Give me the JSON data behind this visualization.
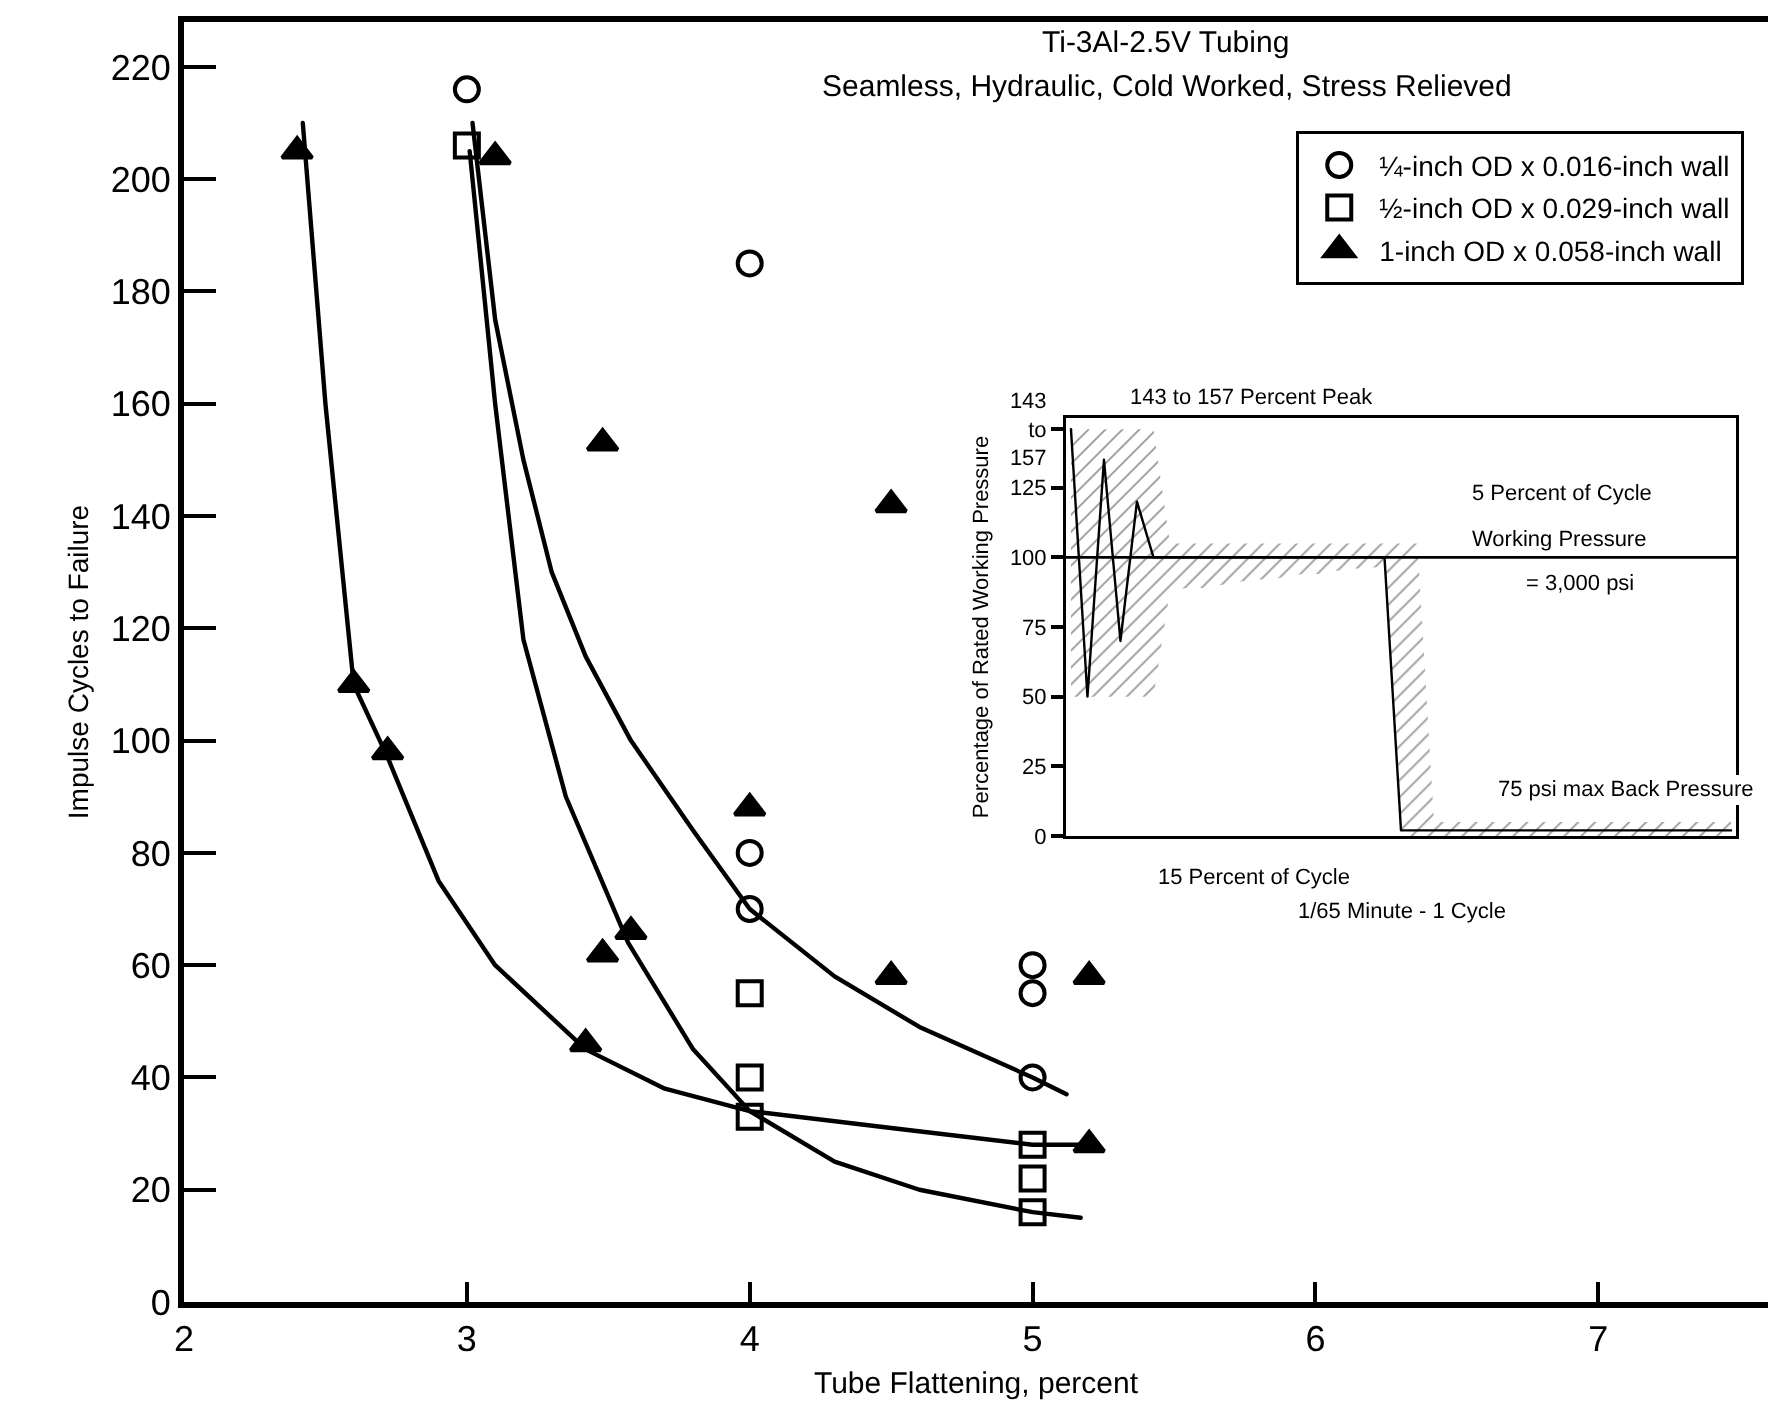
{
  "chart_data": [
    {
      "type": "scatter",
      "title": "Ti-3Al-2.5V Tubing",
      "subtitle": "Seamless, Hydraulic, Cold Worked, Stress Relieved",
      "xlabel": "Tube Flattening, percent",
      "ylabel": "Impulse Cycles to Failure",
      "xlim": [
        2,
        7.6
      ],
      "xticks": [
        2,
        3,
        4,
        5,
        6,
        7
      ],
      "ylim": [
        0,
        228
      ],
      "yticks": [
        0,
        20,
        40,
        60,
        80,
        100,
        120,
        140,
        160,
        180,
        200,
        220
      ],
      "grid": false,
      "legend": "top right",
      "series": [
        {
          "name": "¼-inch OD x 0.016-inch wall",
          "color": "#000000",
          "marker": "circle",
          "x": [
            3,
            4,
            4,
            4,
            5,
            5,
            5
          ],
          "values": [
            216,
            185,
            80,
            70,
            60,
            55,
            40
          ]
        },
        {
          "name": "½-inch OD x 0.029-inch wall",
          "color": "#000000",
          "marker": "square",
          "x": [
            3,
            4,
            4,
            4,
            5,
            5,
            5
          ],
          "values": [
            206,
            55,
            40,
            33,
            28,
            22,
            16
          ]
        },
        {
          "name": "1-inch OD x 0.058-inch wall",
          "color": "#000000",
          "marker": "triangle",
          "x": [
            2.4,
            2.6,
            2.72,
            3.1,
            3.42,
            3.48,
            3.48,
            3.58,
            4,
            4.5,
            4.5,
            5.2,
            5.2
          ],
          "values": [
            205,
            110,
            98,
            204,
            46,
            153,
            62,
            66,
            88,
            142,
            58,
            58,
            28
          ]
        },
        {
          "type": "line",
          "color": "#000000",
          "marker": "none",
          "x": [
            3.02,
            3.1,
            3.2,
            3.3,
            3.42,
            3.58,
            3.8,
            4,
            4.3,
            4.6,
            5,
            5.12
          ],
          "values": [
            210,
            175,
            150,
            130,
            115,
            100,
            84,
            70,
            58,
            49,
            40,
            37
          ]
        },
        {
          "type": "line",
          "color": "#000000",
          "marker": "none",
          "x": [
            3.01,
            3.1,
            3.2,
            3.35,
            3.57,
            3.8,
            4,
            4.3,
            4.6,
            5,
            5.17
          ],
          "values": [
            205,
            160,
            118,
            90,
            64,
            45,
            34,
            25,
            20,
            16,
            15
          ]
        },
        {
          "type": "line",
          "color": "#000000",
          "marker": "none",
          "x": [
            2.42,
            2.5,
            2.6,
            2.72,
            2.9,
            3.1,
            3.42,
            3.7,
            4,
            4.5,
            5,
            5.22
          ],
          "values": [
            210,
            160,
            110,
            97,
            75,
            60,
            45,
            38,
            34,
            31,
            28,
            28
          ]
        }
      ]
    },
    {
      "type": "line",
      "ylabel": "Percentage of Rated Working Pressure",
      "categories": [
        null,
        null,
        null,
        null,
        null,
        null,
        null,
        null,
        null,
        null,
        null,
        null,
        null,
        null,
        null,
        null,
        null,
        null,
        null,
        null,
        null,
        null,
        null,
        null,
        null,
        null,
        null,
        null,
        null,
        null,
        null,
        null,
        null,
        null,
        null,
        null,
        null,
        null,
        null,
        null,
        null
      ],
      "ylim": [
        0,
        150
      ],
      "yticks": [
        0,
        25,
        50,
        75,
        100,
        125,
        {
          "value": 146,
          "label": "143 to 157"
        }
      ],
      "tick_labels": "y",
      "grid": false,
      "legend": false,
      "series": [
        {
          "color": "#000000",
          "marker": "none",
          "values": [
            146,
            50,
            135,
            70,
            120,
            100,
            100,
            100,
            100,
            100,
            100,
            100,
            100,
            100,
            100,
            100,
            100,
            100,
            100,
            100,
            2,
            2,
            2,
            2,
            2,
            2,
            2,
            2,
            2,
            2,
            2,
            2,
            2,
            2,
            2,
            2,
            2,
            2,
            2,
            2,
            2
          ],
          "upper": [
            146,
            146,
            146,
            146,
            146,
            146,
            105,
            105,
            105,
            105,
            105,
            105,
            105,
            105,
            105,
            105,
            105,
            105,
            105,
            105,
            105,
            105,
            5,
            5,
            5,
            5,
            5,
            5,
            5,
            5,
            5,
            5,
            5,
            5,
            5,
            5,
            5,
            5,
            5,
            5,
            5
          ],
          "lower": [
            50,
            50,
            50,
            50,
            50,
            50,
            88,
            89,
            89,
            90,
            91,
            92,
            92,
            93,
            94,
            94,
            95,
            96,
            96,
            97,
            0,
            0,
            0,
            0,
            0,
            0,
            0,
            0,
            0,
            0,
            0,
            0,
            0,
            0,
            0,
            0,
            0,
            0,
            0,
            0,
            0
          ]
        }
      ],
      "ref_lines": [
        {
          "axis": "y",
          "value": 100,
          "label": "Working Pressure"
        }
      ],
      "annotations": [
        "143 to 157 Percent Peak",
        "5 Percent of Cycle",
        "= 3,000 psi",
        "75 psi max Back Pressure",
        "15 Percent of Cycle",
        "1/65 Minute - 1 Cycle"
      ]
    }
  ]
}
